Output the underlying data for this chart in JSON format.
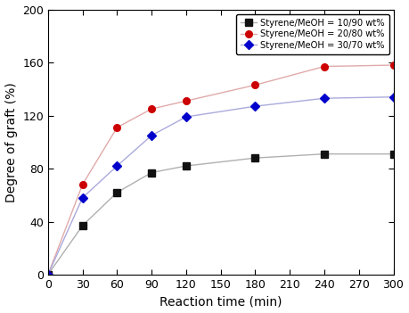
{
  "series": [
    {
      "label": "Styrene/MeOH = 10/90 wt%",
      "x": [
        0,
        30,
        60,
        90,
        120,
        180,
        240,
        300
      ],
      "y": [
        0,
        37,
        62,
        77,
        82,
        88,
        91,
        91
      ],
      "marker": "s",
      "marker_color": "#111111",
      "marker_face": "#111111",
      "line_color": "#b0b0b0"
    },
    {
      "label": "Styrene/MeOH = 20/80 wt%",
      "x": [
        0,
        30,
        60,
        90,
        120,
        180,
        240,
        300
      ],
      "y": [
        0,
        68,
        111,
        125,
        131,
        143,
        157,
        158
      ],
      "marker": "o",
      "marker_color": "#cc0000",
      "marker_face": "#cc0000",
      "line_color": "#e0aaaa"
    },
    {
      "label": "Styrene/MeOH = 30/70 wt%",
      "x": [
        0,
        30,
        60,
        90,
        120,
        180,
        240,
        300
      ],
      "y": [
        0,
        58,
        82,
        105,
        119,
        127,
        133,
        134
      ],
      "marker": "D",
      "marker_color": "#0000cc",
      "marker_face": "#0000cc",
      "line_color": "#aaaadd"
    }
  ],
  "xlabel": "Reaction time (min)",
  "ylabel": "Degree of graft (%)",
  "xlim": [
    0,
    300
  ],
  "ylim": [
    0,
    200
  ],
  "xticks": [
    0,
    30,
    60,
    90,
    120,
    150,
    180,
    210,
    240,
    270,
    300
  ],
  "yticks": [
    0,
    40,
    80,
    120,
    160,
    200
  ],
  "figsize": [
    4.59,
    3.51
  ],
  "dpi": 100,
  "legend_fontsize": 7.2,
  "xlabel_fontsize": 10,
  "ylabel_fontsize": 10,
  "tick_labelsize": 9
}
